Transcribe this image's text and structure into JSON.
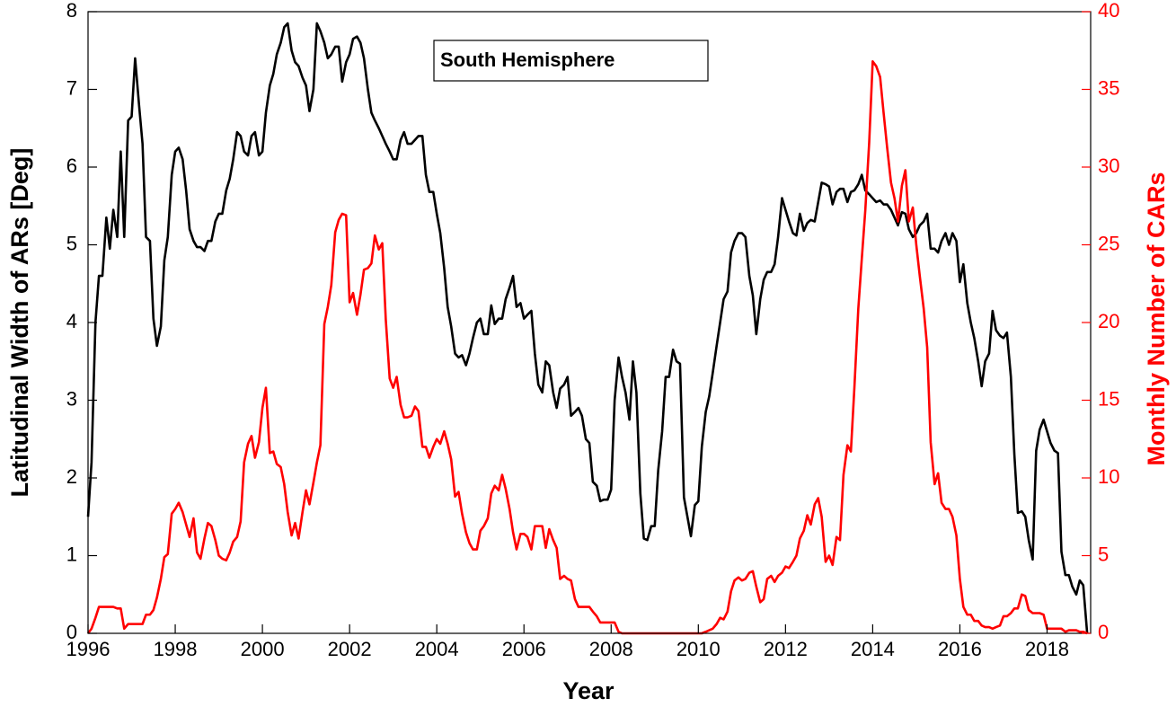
{
  "chart_data": {
    "type": "line",
    "annotation": "South Hemisphere",
    "x_label": "Year",
    "y_label": "Latitudinal Width of ARs [Deg]",
    "y2_label": "Monthly Number of CARs",
    "y2_color": "#ff0000",
    "xlim": [
      1996,
      2019
    ],
    "xticks": [
      1996,
      1998,
      2000,
      2002,
      2004,
      2006,
      2008,
      2010,
      2012,
      2014,
      2016,
      2018
    ],
    "ylim": [
      0,
      8
    ],
    "yticks": [
      0,
      1,
      2,
      3,
      4,
      5,
      6,
      7,
      8
    ],
    "y2lim": [
      0,
      40
    ],
    "y2ticks": [
      0,
      5,
      10,
      15,
      20,
      25,
      30,
      35,
      40
    ],
    "x": [
      1996,
      1996.08,
      1996.17,
      1996.25,
      1996.33,
      1996.42,
      1996.5,
      1996.58,
      1996.67,
      1996.75,
      1996.83,
      1996.92,
      1997,
      1997.08,
      1997.17,
      1997.25,
      1997.33,
      1997.42,
      1997.5,
      1997.58,
      1997.67,
      1997.75,
      1997.83,
      1997.92,
      1998,
      1998.08,
      1998.17,
      1998.25,
      1998.33,
      1998.42,
      1998.5,
      1998.58,
      1998.67,
      1998.75,
      1998.83,
      1998.92,
      1999,
      1999.08,
      1999.17,
      1999.25,
      1999.33,
      1999.42,
      1999.5,
      1999.58,
      1999.67,
      1999.75,
      1999.83,
      1999.92,
      2000,
      2000.08,
      2000.17,
      2000.25,
      2000.33,
      2000.42,
      2000.5,
      2000.58,
      2000.67,
      2000.75,
      2000.83,
      2000.92,
      2001,
      2001.08,
      2001.17,
      2001.25,
      2001.33,
      2001.42,
      2001.5,
      2001.58,
      2001.67,
      2001.75,
      2001.83,
      2001.92,
      2002,
      2002.08,
      2002.17,
      2002.25,
      2002.33,
      2002.42,
      2002.5,
      2002.58,
      2002.67,
      2002.75,
      2002.83,
      2002.92,
      2003,
      2003.08,
      2003.17,
      2003.25,
      2003.33,
      2003.42,
      2003.5,
      2003.58,
      2003.67,
      2003.75,
      2003.83,
      2003.92,
      2004,
      2004.08,
      2004.17,
      2004.25,
      2004.33,
      2004.42,
      2004.5,
      2004.58,
      2004.67,
      2004.75,
      2004.83,
      2004.92,
      2005,
      2005.08,
      2005.17,
      2005.25,
      2005.33,
      2005.42,
      2005.5,
      2005.58,
      2005.67,
      2005.75,
      2005.83,
      2005.92,
      2006,
      2006.08,
      2006.17,
      2006.25,
      2006.33,
      2006.42,
      2006.5,
      2006.58,
      2006.67,
      2006.75,
      2006.83,
      2006.92,
      2007,
      2007.08,
      2007.17,
      2007.25,
      2007.33,
      2007.42,
      2007.5,
      2007.58,
      2007.67,
      2007.75,
      2007.83,
      2007.92,
      2008,
      2008.08,
      2008.17,
      2008.25,
      2008.33,
      2008.42,
      2008.5,
      2008.58,
      2008.67,
      2008.75,
      2008.83,
      2008.92,
      2009,
      2009.08,
      2009.17,
      2009.25,
      2009.33,
      2009.42,
      2009.5,
      2009.58,
      2009.67,
      2009.75,
      2009.83,
      2009.92,
      2010,
      2010.08,
      2010.17,
      2010.25,
      2010.33,
      2010.42,
      2010.5,
      2010.58,
      2010.67,
      2010.75,
      2010.83,
      2010.92,
      2011,
      2011.08,
      2011.17,
      2011.25,
      2011.33,
      2011.42,
      2011.5,
      2011.58,
      2011.67,
      2011.75,
      2011.83,
      2011.92,
      2012,
      2012.08,
      2012.17,
      2012.25,
      2012.33,
      2012.42,
      2012.5,
      2012.58,
      2012.67,
      2012.75,
      2012.83,
      2012.92,
      2013,
      2013.08,
      2013.17,
      2013.25,
      2013.33,
      2013.42,
      2013.5,
      2013.58,
      2013.67,
      2013.75,
      2013.83,
      2013.92,
      2014,
      2014.08,
      2014.17,
      2014.25,
      2014.33,
      2014.42,
      2014.5,
      2014.58,
      2014.67,
      2014.75,
      2014.83,
      2014.92,
      2015,
      2015.08,
      2015.17,
      2015.25,
      2015.33,
      2015.42,
      2015.5,
      2015.58,
      2015.67,
      2015.75,
      2015.83,
      2015.92,
      2016,
      2016.08,
      2016.17,
      2016.25,
      2016.33,
      2016.42,
      2016.5,
      2016.58,
      2016.67,
      2016.75,
      2016.83,
      2016.92,
      2017,
      2017.08,
      2017.17,
      2017.25,
      2017.33,
      2017.42,
      2017.5,
      2017.58,
      2017.67,
      2017.75,
      2017.83,
      2017.92,
      2018,
      2018.08,
      2018.17,
      2018.25,
      2018.33,
      2018.42,
      2018.5,
      2018.58,
      2018.67,
      2018.75,
      2018.83,
      2018.92
    ],
    "series": [
      {
        "color": "#000000",
        "values": [
          1.5,
          2.2,
          4.0,
          4.6,
          4.6,
          5.35,
          4.95,
          5.45,
          5.1,
          6.2,
          5.1,
          6.6,
          6.65,
          7.4,
          6.8,
          6.3,
          5.1,
          5.05,
          4.05,
          3.7,
          3.95,
          4.8,
          5.1,
          5.9,
          6.2,
          6.25,
          6.1,
          5.7,
          5.2,
          5.05,
          4.97,
          4.97,
          4.92,
          5.05,
          5.05,
          5.3,
          5.4,
          5.4,
          5.7,
          5.85,
          6.1,
          6.45,
          6.4,
          6.2,
          6.15,
          6.4,
          6.45,
          6.15,
          6.2,
          6.7,
          7.05,
          7.2,
          7.45,
          7.6,
          7.8,
          7.85,
          7.5,
          7.35,
          7.3,
          7.15,
          7.05,
          6.72,
          7.0,
          7.85,
          7.75,
          7.6,
          7.4,
          7.45,
          7.55,
          7.55,
          7.1,
          7.35,
          7.45,
          7.65,
          7.68,
          7.6,
          7.4,
          7.0,
          6.7,
          6.6,
          6.5,
          6.4,
          6.3,
          6.2,
          6.1,
          6.1,
          6.35,
          6.45,
          6.3,
          6.3,
          6.35,
          6.4,
          6.4,
          5.9,
          5.68,
          5.68,
          5.4,
          5.15,
          4.7,
          4.2,
          3.95,
          3.6,
          3.55,
          3.58,
          3.45,
          3.6,
          3.8,
          4.0,
          4.05,
          3.85,
          3.85,
          4.22,
          3.98,
          4.05,
          4.05,
          4.3,
          4.45,
          4.6,
          4.2,
          4.25,
          4.05,
          4.1,
          4.15,
          3.6,
          3.2,
          3.1,
          3.5,
          3.45,
          3.1,
          2.9,
          3.15,
          3.2,
          3.3,
          2.8,
          2.85,
          2.9,
          2.8,
          2.5,
          2.45,
          1.95,
          1.9,
          1.7,
          1.72,
          1.72,
          1.85,
          3.0,
          3.55,
          3.3,
          3.1,
          2.75,
          3.5,
          3.1,
          1.8,
          1.22,
          1.2,
          1.38,
          1.38,
          2.1,
          2.6,
          3.3,
          3.3,
          3.65,
          3.5,
          3.47,
          1.75,
          1.5,
          1.25,
          1.65,
          1.7,
          2.4,
          2.85,
          3.05,
          3.35,
          3.7,
          4.0,
          4.3,
          4.4,
          4.9,
          5.05,
          5.15,
          5.15,
          5.1,
          4.6,
          4.35,
          3.85,
          4.3,
          4.55,
          4.65,
          4.65,
          4.75,
          5.1,
          5.6,
          5.45,
          5.3,
          5.15,
          5.12,
          5.4,
          5.18,
          5.28,
          5.32,
          5.3,
          5.55,
          5.8,
          5.78,
          5.75,
          5.52,
          5.68,
          5.72,
          5.72,
          5.55,
          5.68,
          5.7,
          5.78,
          5.9,
          5.7,
          5.65,
          5.6,
          5.55,
          5.57,
          5.52,
          5.52,
          5.45,
          5.35,
          5.25,
          5.42,
          5.4,
          5.2,
          5.1,
          5.15,
          5.25,
          5.3,
          5.4,
          4.95,
          4.95,
          4.9,
          5.05,
          5.15,
          5.0,
          5.15,
          5.05,
          4.52,
          4.75,
          4.25,
          4.0,
          3.8,
          3.5,
          3.18,
          3.5,
          3.6,
          4.15,
          3.9,
          3.83,
          3.8,
          3.87,
          3.3,
          2.3,
          1.55,
          1.57,
          1.5,
          1.2,
          0.95,
          2.35,
          2.62,
          2.75,
          2.6,
          2.45,
          2.35,
          2.32,
          1.05,
          0.75,
          0.75,
          0.6,
          0.5,
          0.68,
          0.62,
          0.0
        ]
      },
      {
        "color": "#ff0000",
        "axis": "y2",
        "values": [
          0,
          0.3,
          1.0,
          1.7,
          1.7,
          1.7,
          1.7,
          1.7,
          1.6,
          1.6,
          0.3,
          0.6,
          0.6,
          0.6,
          0.6,
          0.6,
          1.2,
          1.2,
          1.5,
          2.3,
          3.5,
          4.9,
          5.1,
          7.7,
          8.0,
          8.4,
          7.8,
          7.0,
          6.2,
          7.4,
          5.2,
          4.8,
          6.1,
          7.1,
          6.9,
          6.0,
          5.0,
          4.8,
          4.7,
          5.2,
          5.9,
          6.2,
          7.2,
          11.0,
          12.2,
          12.7,
          11.3,
          12.3,
          14.5,
          15.8,
          11.6,
          11.7,
          10.9,
          10.7,
          9.6,
          7.8,
          6.3,
          7.1,
          6.1,
          7.8,
          9.2,
          8.3,
          9.7,
          11.0,
          12.1,
          19.9,
          21.0,
          22.4,
          25.8,
          26.6,
          27.0,
          26.9,
          21.3,
          21.9,
          20.5,
          21.8,
          23.4,
          23.5,
          23.8,
          25.6,
          24.7,
          25.1,
          20.2,
          16.4,
          15.8,
          16.5,
          14.7,
          13.9,
          13.9,
          14.0,
          14.6,
          14.3,
          12.0,
          12.0,
          11.3,
          12.0,
          12.5,
          12.2,
          13.0,
          12.2,
          11.2,
          8.8,
          9.1,
          7.7,
          6.5,
          5.8,
          5.4,
          5.4,
          6.6,
          6.9,
          7.4,
          9.0,
          9.5,
          9.2,
          10.2,
          9.3,
          8.0,
          6.5,
          5.4,
          6.4,
          6.4,
          6.2,
          5.4,
          6.9,
          6.9,
          6.9,
          5.5,
          6.7,
          6.0,
          5.5,
          3.5,
          3.7,
          3.5,
          3.4,
          2.2,
          1.7,
          1.7,
          1.7,
          1.7,
          1.4,
          1.1,
          0.7,
          0.7,
          0.7,
          0.7,
          0.7,
          0.1,
          0,
          0,
          0,
          0,
          0,
          0,
          0,
          0,
          0,
          0,
          0,
          0,
          0,
          0,
          0,
          0,
          0,
          0,
          0,
          0,
          0,
          0,
          0,
          0.1,
          0.2,
          0.3,
          0.6,
          1.0,
          0.9,
          1.4,
          2.7,
          3.4,
          3.6,
          3.4,
          3.5,
          3.9,
          4.0,
          3.0,
          2.0,
          2.2,
          3.5,
          3.7,
          3.3,
          3.7,
          3.9,
          4.3,
          4.2,
          4.6,
          5.0,
          6.1,
          6.6,
          7.6,
          7.0,
          8.3,
          8.7,
          7.5,
          4.6,
          5.0,
          4.4,
          6.2,
          6.0,
          10.2,
          12.1,
          11.7,
          15.8,
          20.9,
          24.1,
          27.2,
          31.6,
          36.8,
          36.5,
          35.8,
          33.5,
          31.3,
          29.0,
          28.0,
          26.5,
          28.8,
          29.8,
          26.5,
          27.4,
          25.0,
          23.0,
          20.9,
          18.4,
          12.3,
          9.6,
          10.3,
          8.4,
          8.0,
          8.0,
          7.5,
          6.3,
          3.5,
          1.7,
          1.2,
          1.2,
          0.8,
          0.8,
          0.5,
          0.4,
          0.4,
          0.3,
          0.4,
          0.5,
          1.1,
          1.1,
          1.3,
          1.6,
          1.6,
          2.5,
          2.4,
          1.5,
          1.3,
          1.3,
          1.3,
          1.2,
          0.3,
          0.3,
          0.3,
          0.3,
          0.3,
          0.1,
          0.2,
          0.2,
          0.2,
          0.1,
          0.1,
          0
        ]
      }
    ]
  }
}
